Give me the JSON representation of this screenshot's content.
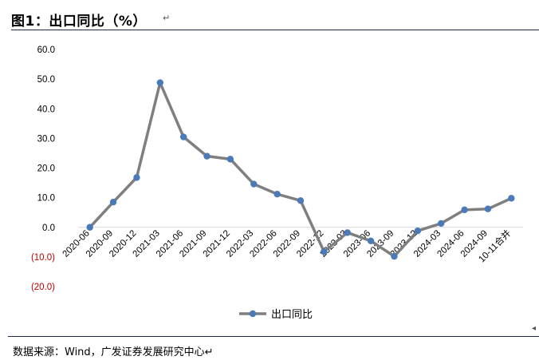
{
  "title": "图1：出口同比（%）",
  "title_mark": "↵",
  "source": "数据来源：Wind，广发证券发展研究中心↵",
  "right_mark": "◂",
  "colors": {
    "line": "#7f7f7f",
    "marker": "#4a7ab8",
    "negative_label": "#c00000",
    "rule": "#1f2a44"
  },
  "chart_data": {
    "type": "line",
    "title": "",
    "xlabel": "",
    "ylabel": "",
    "ylim": [
      -20,
      60
    ],
    "y_ticks": [
      60,
      50,
      40,
      30,
      20,
      10,
      0,
      -10,
      -20
    ],
    "y_tick_labels": [
      "60.0",
      "50.0",
      "40.0",
      "30.0",
      "20.0",
      "10.0",
      "0.0",
      "(10.0)",
      "(20.0)"
    ],
    "grid": false,
    "legend_position": "bottom",
    "categories": [
      "2020-06",
      "2020-09",
      "2020-12",
      "2021-03",
      "2021-06",
      "2021-09",
      "2021-12",
      "2022-03",
      "2022-06",
      "2022-09",
      "2022-12",
      "2023-03",
      "2023-06",
      "2023-09",
      "2023-12",
      "2024-03",
      "2024-06",
      "2024-09",
      "10-11合并"
    ],
    "series": [
      {
        "name": "出口同比",
        "values": [
          0.0,
          8.5,
          16.8,
          48.8,
          30.5,
          24.0,
          23.0,
          14.6,
          11.2,
          9.0,
          -8.2,
          -1.8,
          -4.6,
          -9.8,
          -1.2,
          1.3,
          5.9,
          6.2,
          9.8
        ]
      }
    ]
  }
}
